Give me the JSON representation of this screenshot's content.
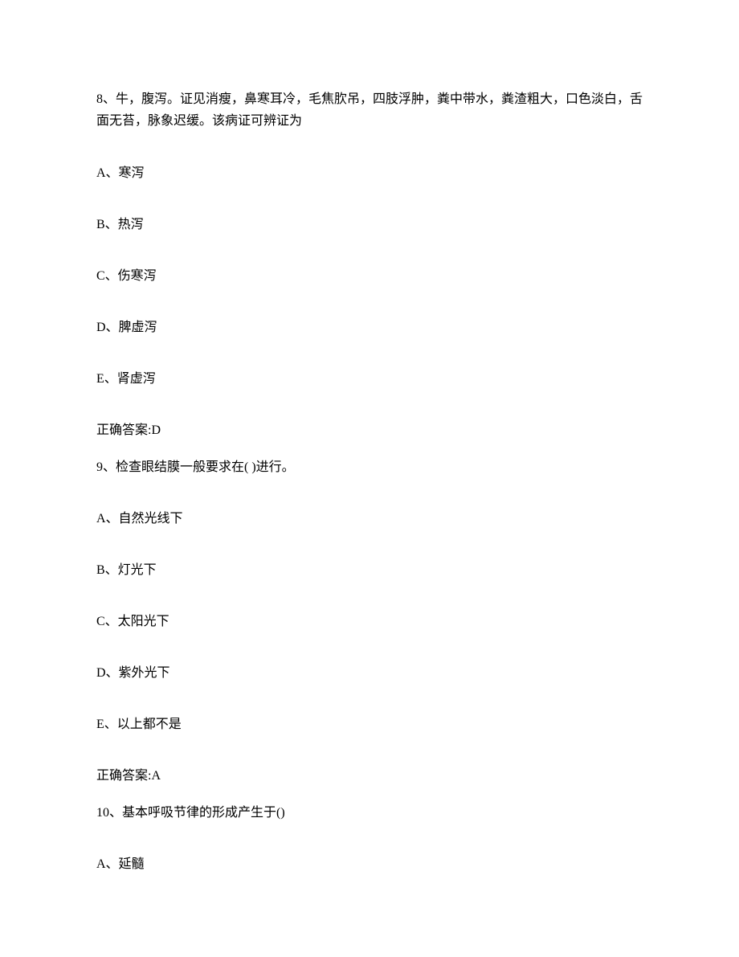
{
  "questions": [
    {
      "stem": "8、牛，腹泻。证见消瘦，鼻寒耳冷，毛焦肷吊，四肢浮肿，粪中带水，粪渣粗大，口色淡白，舌面无苔，脉象迟缓。该病证可辨证为",
      "options": {
        "A": "A、寒泻",
        "B": "B、热泻",
        "C": "C、伤寒泻",
        "D": "D、脾虚泻",
        "E": "E、肾虚泻"
      },
      "answer": "正确答案:D"
    },
    {
      "stem": "9、检查眼结膜一般要求在( )进行。",
      "options": {
        "A": "A、自然光线下",
        "B": "B、灯光下",
        "C": "C、太阳光下",
        "D": "D、紫外光下",
        "E": "E、以上都不是"
      },
      "answer": "正确答案:A"
    },
    {
      "stem": "10、基本呼吸节律的形成产生于()",
      "options": {
        "A": "A、延髓"
      }
    }
  ]
}
